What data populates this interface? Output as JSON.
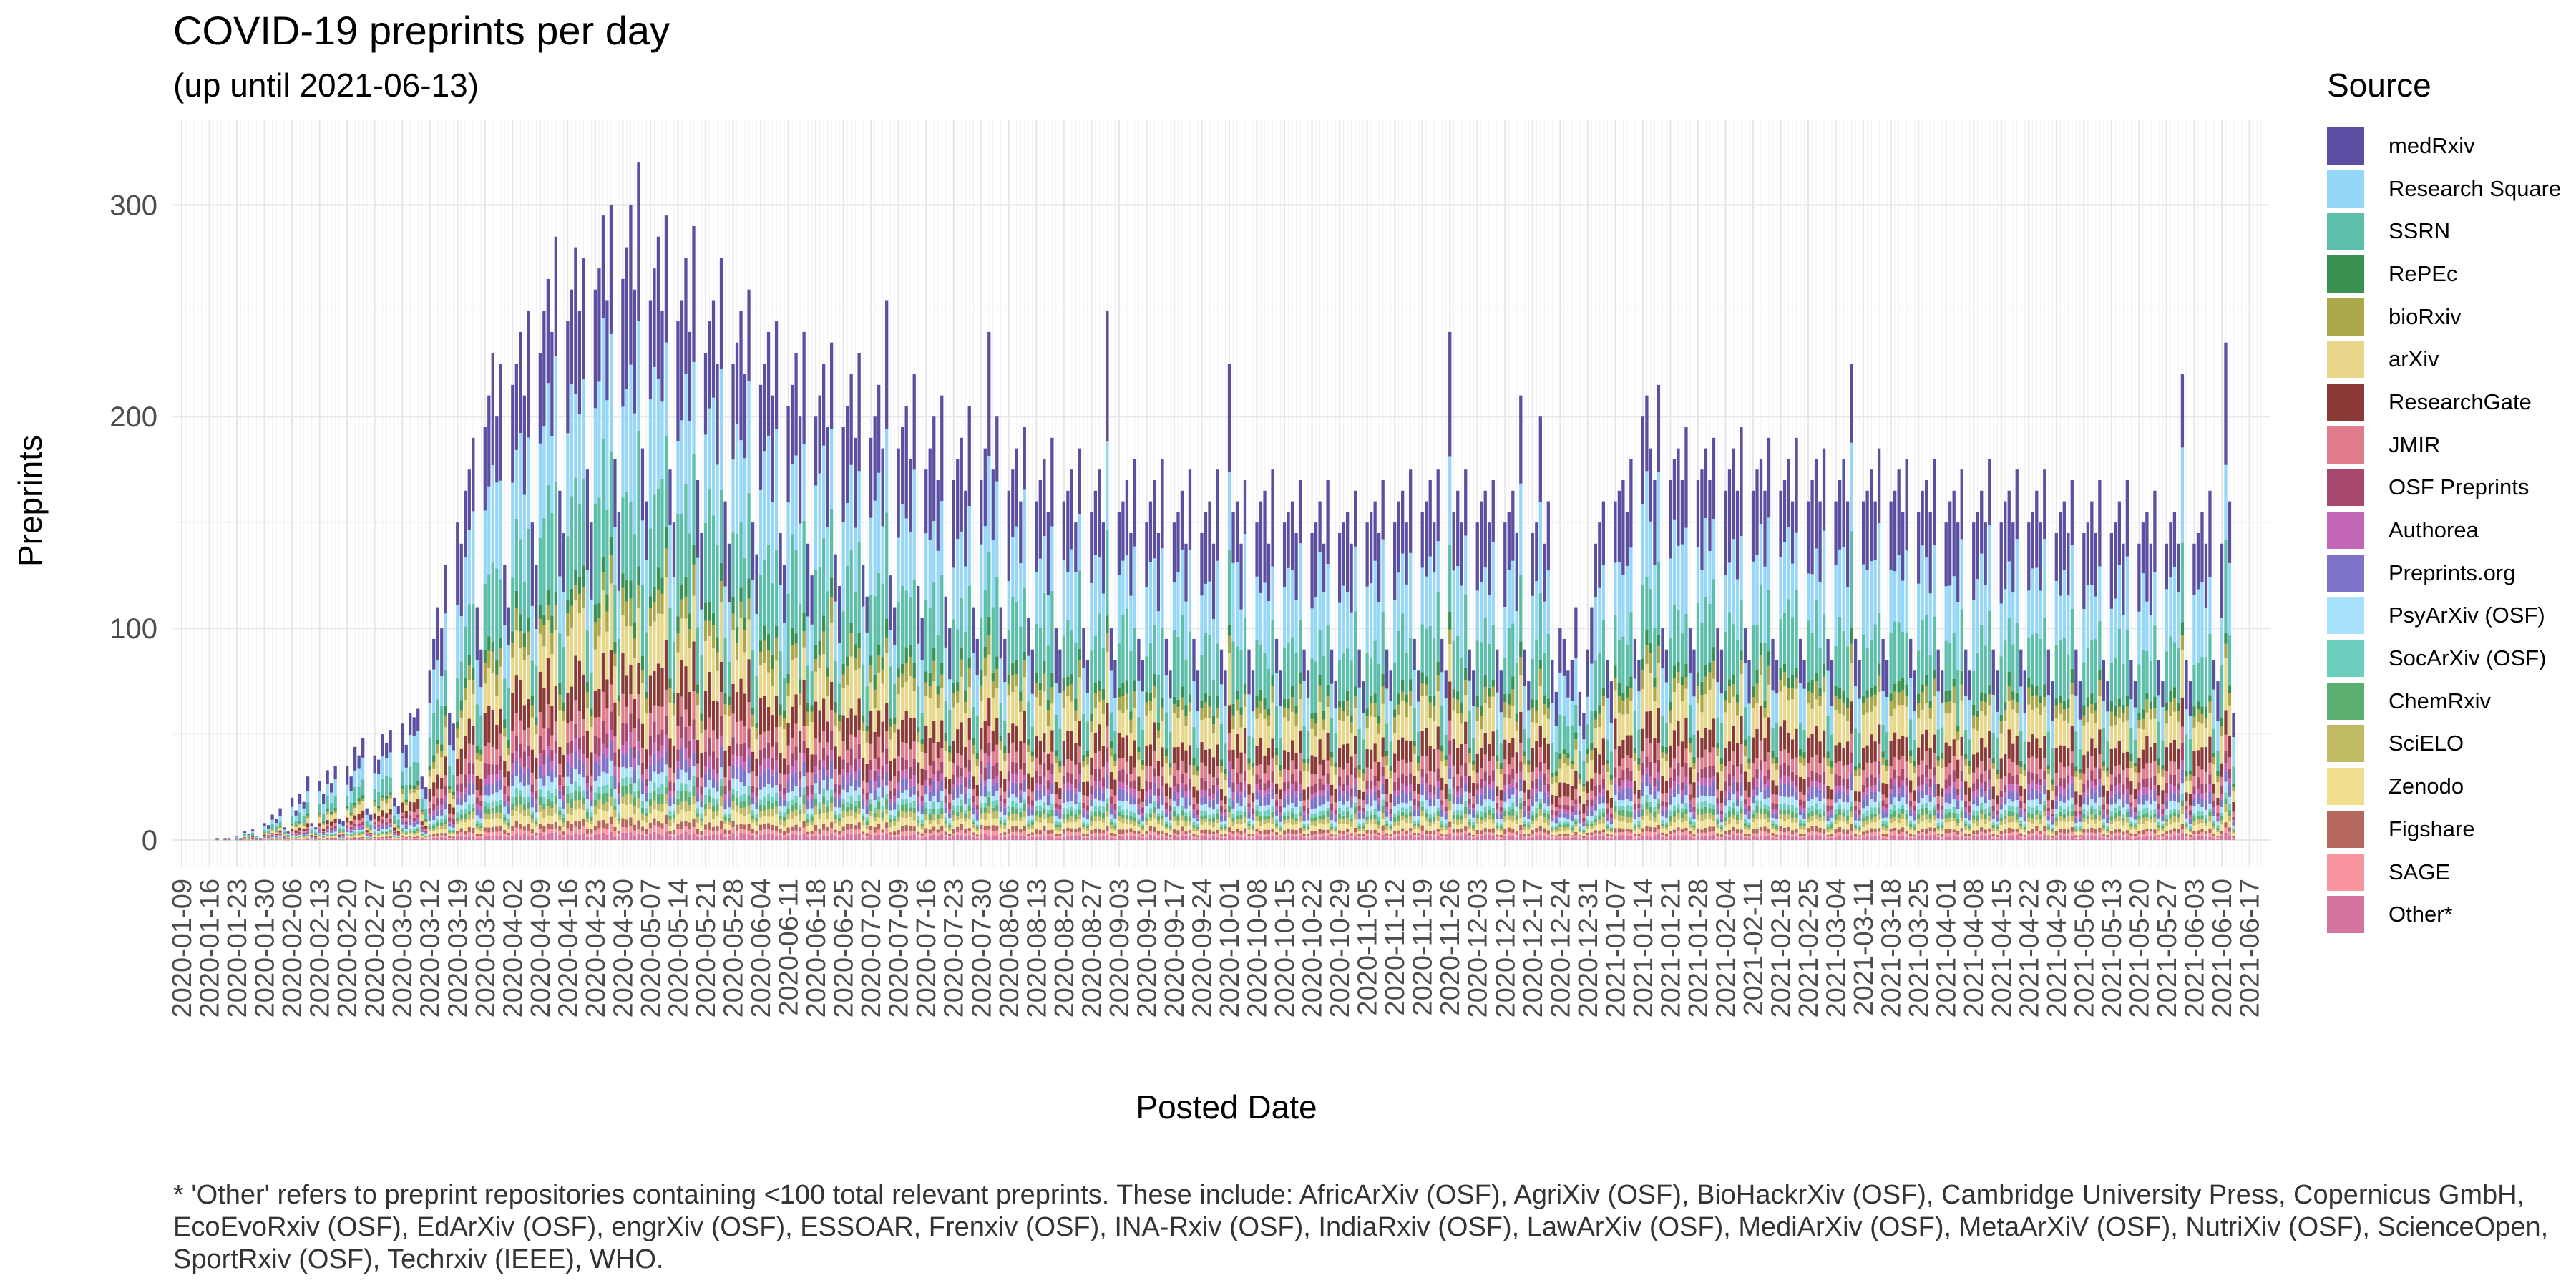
{
  "chart_data": {
    "type": "bar",
    "stacked": true,
    "title": "COVID-19 preprints per day",
    "subtitle": "(up until 2021-06-13)",
    "xlabel": "Posted Date",
    "ylabel": "Preprints",
    "ylim": [
      0,
      340
    ],
    "yticks": [
      "0",
      "100",
      "200",
      "300"
    ],
    "xrange": [
      "2020-01-09",
      "2021-06-13"
    ],
    "xticks": [
      "2020-01-09",
      "2020-01-16",
      "2020-01-23",
      "2020-01-30",
      "2020-02-06",
      "2020-02-13",
      "2020-02-20",
      "2020-02-27",
      "2020-03-05",
      "2020-03-12",
      "2020-03-19",
      "2020-03-26",
      "2020-04-02",
      "2020-04-09",
      "2020-04-16",
      "2020-04-23",
      "2020-04-30",
      "2020-05-07",
      "2020-05-14",
      "2020-05-21",
      "2020-05-28",
      "2020-06-04",
      "2020-06-11",
      "2020-06-18",
      "2020-06-25",
      "2020-07-02",
      "2020-07-09",
      "2020-07-16",
      "2020-07-23",
      "2020-07-30",
      "2020-08-06",
      "2020-08-13",
      "2020-08-20",
      "2020-08-27",
      "2020-09-03",
      "2020-09-10",
      "2020-09-17",
      "2020-09-24",
      "2020-10-01",
      "2020-10-08",
      "2020-10-15",
      "2020-10-22",
      "2020-10-29",
      "2020-11-05",
      "2020-11-12",
      "2020-11-19",
      "2020-11-26",
      "2020-12-03",
      "2020-12-10",
      "2020-12-17",
      "2020-12-24",
      "2020-12-31",
      "2021-01-07",
      "2021-01-14",
      "2021-01-21",
      "2021-01-28",
      "2021-02-04",
      "2021-02-11",
      "2021-02-18",
      "2021-02-25",
      "2021-03-04",
      "2021-03-11",
      "2021-03-18",
      "2021-03-25",
      "2021-04-01",
      "2021-04-08",
      "2021-04-15",
      "2021-04-22",
      "2021-04-29",
      "2021-05-06",
      "2021-05-13",
      "2021-05-20",
      "2021-05-27",
      "2021-06-03",
      "2021-06-10",
      "2021-06-17"
    ],
    "grid": true,
    "legend_position": "right",
    "legend_title": "Source",
    "series": [
      {
        "name": "medRxiv",
        "color": "#5a4fa2"
      },
      {
        "name": "Research Square",
        "color": "#96d7f7"
      },
      {
        "name": "SSRN",
        "color": "#5cbfaa"
      },
      {
        "name": "RePEc",
        "color": "#3a9152"
      },
      {
        "name": "bioRxiv",
        "color": "#aaa84a"
      },
      {
        "name": "arXiv",
        "color": "#e8d78a"
      },
      {
        "name": "ResearchGate",
        "color": "#8c3a35"
      },
      {
        "name": "JMIR",
        "color": "#e17c8d"
      },
      {
        "name": "OSF Preprints",
        "color": "#a8486e"
      },
      {
        "name": "Authorea",
        "color": "#c466b8"
      },
      {
        "name": "Preprints.org",
        "color": "#7d74c9"
      },
      {
        "name": "PsyArXiv (OSF)",
        "color": "#a8e1fb"
      },
      {
        "name": "SocArXiv (OSF)",
        "color": "#6ccfbd"
      },
      {
        "name": "ChemRxiv",
        "color": "#5aae6f"
      },
      {
        "name": "SciELO",
        "color": "#bfba63"
      },
      {
        "name": "Zenodo",
        "color": "#f0df8f"
      },
      {
        "name": "Figshare",
        "color": "#b5675e"
      },
      {
        "name": "SAGE",
        "color": "#f9959f"
      },
      {
        "name": "Other*",
        "color": "#d4739e"
      }
    ],
    "series_order_note": "",
    "daily_totals_weekly": [
      {
        "week": "2020-01-09",
        "values": [
          0,
          0,
          0,
          0,
          0,
          0,
          0
        ]
      },
      {
        "week": "2020-01-16",
        "values": [
          0,
          0,
          1,
          0,
          1,
          1,
          0
        ]
      },
      {
        "week": "2020-01-23",
        "values": [
          2,
          1,
          4,
          3,
          5,
          2,
          1
        ]
      },
      {
        "week": "2020-01-30",
        "values": [
          8,
          7,
          12,
          10,
          15,
          6,
          4
        ]
      },
      {
        "week": "2020-02-06",
        "values": [
          20,
          14,
          22,
          18,
          30,
          8,
          6
        ]
      },
      {
        "week": "2020-02-13",
        "values": [
          28,
          22,
          33,
          27,
          35,
          10,
          9
        ]
      },
      {
        "week": "2020-02-20",
        "values": [
          35,
          30,
          44,
          40,
          48,
          15,
          12
        ]
      },
      {
        "week": "2020-02-27",
        "values": [
          40,
          38,
          50,
          46,
          52,
          20,
          16
        ]
      },
      {
        "week": "2020-03-05",
        "values": [
          55,
          45,
          60,
          58,
          62,
          30,
          25
        ]
      },
      {
        "week": "2020-03-12",
        "values": [
          80,
          95,
          110,
          100,
          130,
          60,
          55
        ]
      },
      {
        "week": "2020-03-19",
        "values": [
          150,
          140,
          165,
          175,
          190,
          110,
          90
        ]
      },
      {
        "week": "2020-03-26",
        "values": [
          195,
          210,
          230,
          200,
          225,
          130,
          110
        ]
      },
      {
        "week": "2020-04-02",
        "values": [
          215,
          225,
          240,
          210,
          250,
          150,
          130
        ]
      },
      {
        "week": "2020-04-09",
        "values": [
          230,
          250,
          265,
          240,
          285,
          165,
          145
        ]
      },
      {
        "week": "2020-04-16",
        "values": [
          245,
          260,
          280,
          250,
          275,
          175,
          150
        ]
      },
      {
        "week": "2020-04-23",
        "values": [
          260,
          270,
          295,
          255,
          300,
          180,
          155
        ]
      },
      {
        "week": "2020-04-30",
        "values": [
          265,
          280,
          300,
          260,
          320,
          185,
          160
        ]
      },
      {
        "week": "2020-05-07",
        "values": [
          255,
          270,
          285,
          250,
          295,
          175,
          150
        ]
      },
      {
        "week": "2020-05-14",
        "values": [
          245,
          255,
          275,
          240,
          290,
          170,
          145
        ]
      },
      {
        "week": "2020-05-21",
        "values": [
          230,
          245,
          255,
          225,
          275,
          160,
          140
        ]
      },
      {
        "week": "2020-05-28",
        "values": [
          225,
          235,
          250,
          220,
          260,
          150,
          135
        ]
      },
      {
        "week": "2020-06-04",
        "values": [
          215,
          225,
          240,
          210,
          245,
          145,
          130
        ]
      },
      {
        "week": "2020-06-11",
        "values": [
          205,
          215,
          230,
          200,
          240,
          140,
          125
        ]
      },
      {
        "week": "2020-06-18",
        "values": [
          200,
          210,
          225,
          195,
          235,
          135,
          120
        ]
      },
      {
        "week": "2020-06-25",
        "values": [
          195,
          205,
          220,
          190,
          230,
          130,
          115
        ]
      },
      {
        "week": "2020-07-02",
        "values": [
          190,
          200,
          215,
          185,
          255,
          125,
          110
        ]
      },
      {
        "week": "2020-07-09",
        "values": [
          185,
          195,
          205,
          180,
          220,
          120,
          105
        ]
      },
      {
        "week": "2020-07-16",
        "values": [
          175,
          185,
          200,
          170,
          210,
          115,
          100
        ]
      },
      {
        "week": "2020-07-23",
        "values": [
          170,
          180,
          190,
          165,
          205,
          110,
          95
        ]
      },
      {
        "week": "2020-07-30",
        "values": [
          170,
          185,
          240,
          175,
          200,
          110,
          95
        ]
      },
      {
        "week": "2020-08-06",
        "values": [
          165,
          175,
          185,
          160,
          195,
          105,
          90
        ]
      },
      {
        "week": "2020-08-13",
        "values": [
          160,
          170,
          180,
          155,
          190,
          100,
          90
        ]
      },
      {
        "week": "2020-08-20",
        "values": [
          160,
          165,
          175,
          150,
          185,
          100,
          85
        ]
      },
      {
        "week": "2020-08-27",
        "values": [
          155,
          165,
          175,
          150,
          250,
          100,
          85
        ]
      },
      {
        "week": "2020-09-03",
        "values": [
          155,
          160,
          170,
          145,
          180,
          95,
          85
        ]
      },
      {
        "week": "2020-09-10",
        "values": [
          150,
          160,
          170,
          145,
          180,
          95,
          80
        ]
      },
      {
        "week": "2020-09-17",
        "values": [
          150,
          155,
          165,
          140,
          175,
          95,
          80
        ]
      },
      {
        "week": "2020-09-24",
        "values": [
          145,
          155,
          160,
          140,
          175,
          90,
          80
        ]
      },
      {
        "week": "2020-10-01",
        "values": [
          225,
          155,
          160,
          140,
          170,
          90,
          80
        ]
      },
      {
        "week": "2020-10-08",
        "values": [
          150,
          160,
          165,
          140,
          175,
          95,
          80
        ]
      },
      {
        "week": "2020-10-15",
        "values": [
          150,
          155,
          160,
          145,
          170,
          90,
          80
        ]
      },
      {
        "week": "2020-10-22",
        "values": [
          145,
          150,
          160,
          140,
          170,
          90,
          75
        ]
      },
      {
        "week": "2020-10-29",
        "values": [
          145,
          150,
          155,
          140,
          165,
          90,
          75
        ]
      },
      {
        "week": "2020-11-05",
        "values": [
          150,
          155,
          160,
          145,
          170,
          90,
          80
        ]
      },
      {
        "week": "2020-11-12",
        "values": [
          150,
          160,
          165,
          150,
          175,
          95,
          80
        ]
      },
      {
        "week": "2020-11-19",
        "values": [
          155,
          160,
          170,
          150,
          175,
          95,
          80
        ]
      },
      {
        "week": "2020-11-26",
        "values": [
          240,
          155,
          165,
          150,
          175,
          90,
          80
        ]
      },
      {
        "week": "2020-12-03",
        "values": [
          150,
          160,
          165,
          150,
          170,
          90,
          80
        ]
      },
      {
        "week": "2020-12-10",
        "values": [
          150,
          155,
          165,
          145,
          210,
          90,
          75
        ]
      },
      {
        "week": "2020-12-17",
        "values": [
          145,
          150,
          200,
          140,
          160,
          85,
          70
        ]
      },
      {
        "week": "2020-12-24",
        "values": [
          100,
          95,
          80,
          85,
          110,
          70,
          60
        ]
      },
      {
        "week": "2020-12-31",
        "values": [
          90,
          110,
          140,
          150,
          160,
          85,
          75
        ]
      },
      {
        "week": "2021-01-07",
        "values": [
          160,
          165,
          170,
          155,
          180,
          95,
          85
        ]
      },
      {
        "week": "2021-01-14",
        "values": [
          200,
          210,
          185,
          170,
          215,
          100,
          90
        ]
      },
      {
        "week": "2021-01-21",
        "values": [
          170,
          180,
          185,
          170,
          195,
          100,
          90
        ]
      },
      {
        "week": "2021-01-28",
        "values": [
          170,
          175,
          185,
          170,
          190,
          100,
          90
        ]
      },
      {
        "week": "2021-02-04",
        "values": [
          165,
          175,
          185,
          165,
          195,
          100,
          85
        ]
      },
      {
        "week": "2021-02-11",
        "values": [
          165,
          175,
          180,
          165,
          190,
          95,
          85
        ]
      },
      {
        "week": "2021-02-18",
        "values": [
          165,
          170,
          180,
          160,
          190,
          95,
          85
        ]
      },
      {
        "week": "2021-02-25",
        "values": [
          160,
          170,
          180,
          160,
          185,
          95,
          85
        ]
      },
      {
        "week": "2021-03-04",
        "values": [
          160,
          170,
          180,
          160,
          225,
          95,
          85
        ]
      },
      {
        "week": "2021-03-11",
        "values": [
          160,
          165,
          175,
          160,
          185,
          95,
          85
        ]
      },
      {
        "week": "2021-03-18",
        "values": [
          160,
          165,
          175,
          155,
          180,
          95,
          80
        ]
      },
      {
        "week": "2021-03-25",
        "values": [
          155,
          165,
          170,
          155,
          180,
          90,
          80
        ]
      },
      {
        "week": "2021-04-01",
        "values": [
          150,
          160,
          165,
          150,
          175,
          90,
          80
        ]
      },
      {
        "week": "2021-04-08",
        "values": [
          150,
          155,
          165,
          150,
          180,
          90,
          80
        ]
      },
      {
        "week": "2021-04-15",
        "values": [
          150,
          160,
          165,
          150,
          175,
          90,
          80
        ]
      },
      {
        "week": "2021-04-22",
        "values": [
          150,
          155,
          165,
          150,
          175,
          90,
          75
        ]
      },
      {
        "week": "2021-04-29",
        "values": [
          145,
          155,
          160,
          145,
          170,
          90,
          75
        ]
      },
      {
        "week": "2021-05-06",
        "values": [
          145,
          150,
          160,
          145,
          170,
          85,
          75
        ]
      },
      {
        "week": "2021-05-13",
        "values": [
          145,
          150,
          160,
          140,
          170,
          85,
          75
        ]
      },
      {
        "week": "2021-05-20",
        "values": [
          140,
          150,
          155,
          140,
          165,
          85,
          75
        ]
      },
      {
        "week": "2021-05-27",
        "values": [
          140,
          150,
          155,
          140,
          220,
          85,
          75
        ]
      },
      {
        "week": "2021-06-03",
        "values": [
          140,
          145,
          155,
          140,
          165,
          85,
          75
        ]
      },
      {
        "week": "2021-06-10",
        "values": [
          140,
          235,
          160,
          60,
          null,
          null,
          null
        ]
      }
    ],
    "caption": "* 'Other' refers to preprint repositories containing <100 total relevant preprints. These include: AfricArXiv (OSF), AgriXiv (OSF), BioHackrXiv (OSF), Cambridge University Press, Copernicus GmbH, EcoEvoRxiv (OSF), EdArXiv (OSF), engrXiv (OSF), ESSOAR, Frenxiv (OSF), INA-Rxiv (OSF), IndiaRxiv (OSF), LawArXiv (OSF), MediArXiv (OSF), MetaArXiV (OSF), NutriXiv (OSF), ScienceOpen, SportRxiv (OSF), Techrxiv (IEEE), WHO."
  }
}
